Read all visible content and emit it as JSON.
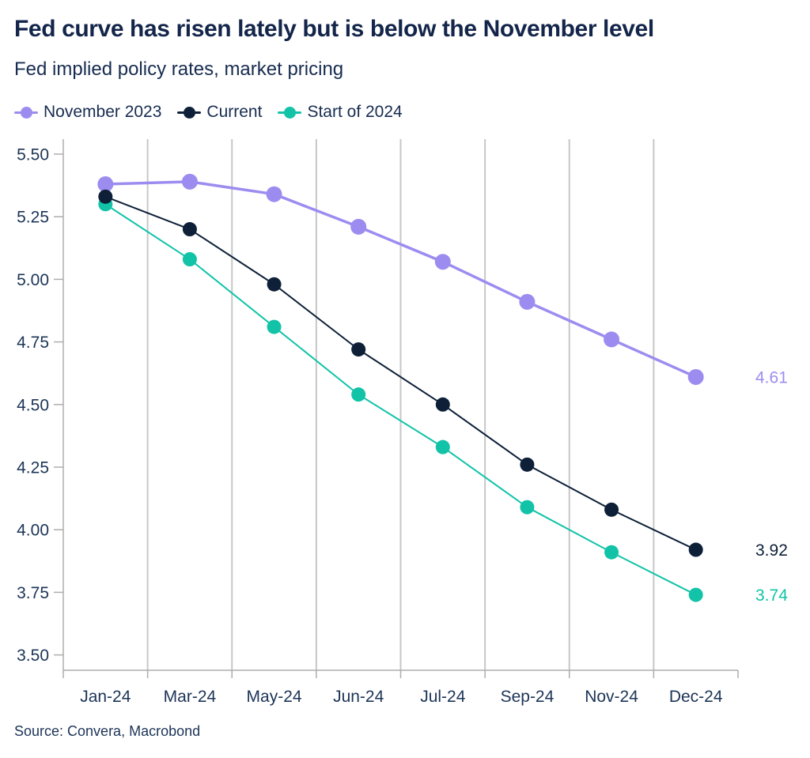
{
  "header": {
    "title": "Fed curve has risen lately but is below the November level",
    "subtitle": "Fed implied policy rates, market pricing"
  },
  "legend": [
    {
      "label": "November 2023",
      "color": "#9d8cf0"
    },
    {
      "label": "Current",
      "color": "#0d2038"
    },
    {
      "label": "Start of 2024",
      "color": "#12c3a8"
    }
  ],
  "source": "Source: Convera, Macrobond",
  "colors": {
    "title_text": "#13254a",
    "body_text": "#172c50",
    "tick_text": "#1c3457",
    "gridline": "#c7c7c7",
    "axis_line": "#adadad",
    "background": "#ffffff"
  },
  "chart_data": {
    "type": "line",
    "title": "Fed curve has risen lately but is below the November level",
    "subtitle": "Fed implied policy rates, market pricing",
    "xlabel": "",
    "ylabel": "",
    "categories": [
      "Jan-24",
      "Mar-24",
      "May-24",
      "Jun-24",
      "Jul-24",
      "Sep-24",
      "Nov-24",
      "Dec-24"
    ],
    "series": [
      {
        "name": "November 2023",
        "color": "#9d8cf0",
        "values": [
          5.38,
          5.39,
          5.34,
          5.21,
          5.07,
          4.91,
          4.76,
          4.61
        ],
        "end_label": "4.61",
        "line_width": 3.5,
        "marker_radius": 10
      },
      {
        "name": "Current",
        "color": "#0d2038",
        "values": [
          5.33,
          5.2,
          4.98,
          4.72,
          4.5,
          4.26,
          4.08,
          3.92
        ],
        "end_label": "3.92",
        "line_width": 2,
        "marker_radius": 9
      },
      {
        "name": "Start of 2024",
        "color": "#12c3a8",
        "values": [
          5.3,
          5.08,
          4.81,
          4.54,
          4.33,
          4.09,
          3.91,
          3.74
        ],
        "end_label": "3.74",
        "line_width": 2,
        "marker_radius": 9
      }
    ],
    "y_ticks": [
      "5.50",
      "5.25",
      "5.00",
      "4.75",
      "4.50",
      "4.25",
      "4.00",
      "3.75",
      "3.50"
    ],
    "ylim": [
      3.44,
      5.55
    ],
    "grid": "vertical-only",
    "legend_position": "top-left"
  }
}
